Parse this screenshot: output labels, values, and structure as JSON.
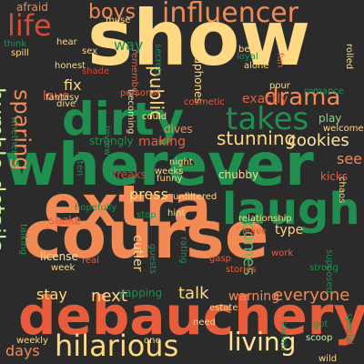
{
  "colors": {
    "background": "#2b2b2b",
    "palette": [
      "#ffd983",
      "#f28a56",
      "#e75d3c",
      "#1e8f4e",
      "#c9f0a0",
      "#8fd18d",
      "#ffe39f",
      "#d64b33",
      "#5cba6a"
    ]
  },
  "words": [
    {
      "text": "show",
      "color": "#ffd983"
    },
    {
      "text": "wherever",
      "color": "#1e8f4e"
    },
    {
      "text": "course",
      "color": "#f28a56"
    },
    {
      "text": "extra",
      "color": "#f28a56"
    },
    {
      "text": "debauchery",
      "color": "#e75d3c"
    },
    {
      "text": "dirty",
      "color": "#1e8f4e"
    },
    {
      "text": "laugh",
      "color": "#1e8f4e"
    },
    {
      "text": "influencer",
      "color": "#f28a56"
    },
    {
      "text": "hilarious",
      "color": "#ffd983"
    },
    {
      "text": "takes",
      "color": "#1e8f4e"
    },
    {
      "text": "life",
      "color": "#d64b33"
    },
    {
      "text": "drama",
      "color": "#f28a56"
    },
    {
      "text": "living",
      "color": "#ffe39f"
    },
    {
      "text": "boys",
      "color": "#f28a56"
    },
    {
      "text": "details",
      "color": "#c9f0a0"
    },
    {
      "text": "humble",
      "color": "#c9f0a0"
    },
    {
      "text": "sparing",
      "color": "#f28a56"
    },
    {
      "text": "stunning",
      "color": "#ffd983"
    },
    {
      "text": "cookies",
      "color": "#ffe39f"
    },
    {
      "text": "everyone",
      "color": "#f28a56"
    },
    {
      "text": "public",
      "color": "#ffd983"
    },
    {
      "text": "comes",
      "color": "#5cba6a"
    },
    {
      "text": "talk",
      "color": "#ffd983"
    },
    {
      "text": "next",
      "color": "#ffd983"
    },
    {
      "text": "stay",
      "color": "#ffd983"
    },
    {
      "text": "days",
      "color": "#f28a56"
    },
    {
      "text": "way",
      "color": "#1e8f4e"
    },
    {
      "text": "fix",
      "color": "#ffd983"
    },
    {
      "text": "love",
      "color": "#e75d3c"
    },
    {
      "text": "afraid",
      "color": "#f28a56"
    },
    {
      "text": "exactly",
      "color": "#e75d3c"
    },
    {
      "text": "press",
      "color": "#ffd983"
    },
    {
      "text": "see",
      "color": "#f28a56"
    },
    {
      "text": "making",
      "color": "#e75d3c"
    },
    {
      "text": "strongly",
      "color": "#1e8f4e"
    },
    {
      "text": "type",
      "color": "#ffd983"
    },
    {
      "text": "warning",
      "color": "#f28a56"
    },
    {
      "text": "yapping",
      "color": "#1e8f4e"
    },
    {
      "text": "cutler",
      "color": "#ffd983"
    },
    {
      "text": "headphones",
      "color": "#ffd983"
    },
    {
      "text": "becoming",
      "color": "#ffd983"
    },
    {
      "text": "play",
      "color": "#8fd18d"
    },
    {
      "text": "kicks",
      "color": "#e75d3c"
    },
    {
      "text": "chubby",
      "color": "#ffd983"
    },
    {
      "text": "freaks",
      "color": "#d64b33"
    },
    {
      "text": "shake",
      "color": "#e75d3c"
    },
    {
      "text": "drink",
      "color": "#e75d3c"
    },
    {
      "text": "license",
      "color": "#ffe39f"
    },
    {
      "text": "week",
      "color": "#ffd983"
    },
    {
      "text": "weekly",
      "color": "#ffd983"
    },
    {
      "text": "need",
      "color": "#ffd983"
    },
    {
      "text": "one",
      "color": "#ffd983"
    },
    {
      "text": "got",
      "color": "#1e8f4e"
    },
    {
      "text": "scoop",
      "color": "#c9f0a0"
    },
    {
      "text": "wild",
      "color": "#ffd983"
    },
    {
      "text": "estate",
      "color": "#ffd983"
    },
    {
      "text": "rating",
      "color": "#1e8f4e"
    },
    {
      "text": "stories",
      "color": "#e75d3c"
    },
    {
      "text": "strong",
      "color": "#1e8f4e"
    },
    {
      "text": "supposed",
      "color": "#1e8f4e"
    },
    {
      "text": "relationship",
      "color": "#ffd983"
    },
    {
      "text": "unfiltered",
      "color": "#ffd983"
    },
    {
      "text": "hint",
      "color": "#ffd983"
    },
    {
      "text": "work",
      "color": "#e75d3c"
    },
    {
      "text": "gasp",
      "color": "#e75d3c"
    },
    {
      "text": "guests",
      "color": "#1e8f4e"
    },
    {
      "text": "real",
      "color": "#e75d3c"
    },
    {
      "text": "hopefully",
      "color": "#1e8f4e"
    },
    {
      "text": "talking",
      "color": "#1e8f4e"
    },
    {
      "text": "funny",
      "color": "#ffd983"
    },
    {
      "text": "weeks",
      "color": "#ffd983"
    },
    {
      "text": "night",
      "color": "#ffd983"
    },
    {
      "text": "dives",
      "color": "#f28a56"
    },
    {
      "text": "could",
      "color": "#ffd983"
    },
    {
      "text": "cosmetic",
      "color": "#e75d3c"
    },
    {
      "text": "personal",
      "color": "#e75d3c"
    },
    {
      "text": "review",
      "color": "#1e8f4e"
    },
    {
      "text": "listen",
      "color": "#1e8f4e"
    },
    {
      "text": "alone",
      "color": "#ffd983"
    },
    {
      "text": "bed",
      "color": "#ffd983"
    },
    {
      "text": "loyal",
      "color": "#1e8f4e"
    },
    {
      "text": "pour",
      "color": "#ffd983"
    },
    {
      "text": "romance",
      "color": "#1e8f4e"
    },
    {
      "text": "welcome",
      "color": "#ffd983"
    },
    {
      "text": "chaos",
      "color": "#ffd983"
    },
    {
      "text": "rolled",
      "color": "#ffd983"
    },
    {
      "text": "special",
      "color": "#1e8f4e"
    },
    {
      "text": "socials",
      "color": "#1e8f4e"
    },
    {
      "text": "secrets",
      "color": "#1e8f4e"
    },
    {
      "text": "remember",
      "color": "#e75d3c"
    },
    {
      "text": "muse",
      "color": "#ffd983"
    },
    {
      "text": "hear",
      "color": "#ffd983"
    },
    {
      "text": "sex",
      "color": "#ffd983"
    },
    {
      "text": "spill",
      "color": "#ffd983"
    },
    {
      "text": "honest",
      "color": "#ffd983"
    },
    {
      "text": "fantasy",
      "color": "#ffd983"
    },
    {
      "text": "dive",
      "color": "#ffd983"
    },
    {
      "text": "shade",
      "color": "#d64b33"
    },
    {
      "text": "think",
      "color": "#1e8f4e"
    },
    {
      "text": "whether",
      "color": "#1e8f4e"
    },
    {
      "text": "fun",
      "color": "#e75d3c"
    },
    {
      "text": "leave",
      "color": "#d64b33"
    },
    {
      "text": "stop",
      "color": "#1e8f4e"
    }
  ]
}
